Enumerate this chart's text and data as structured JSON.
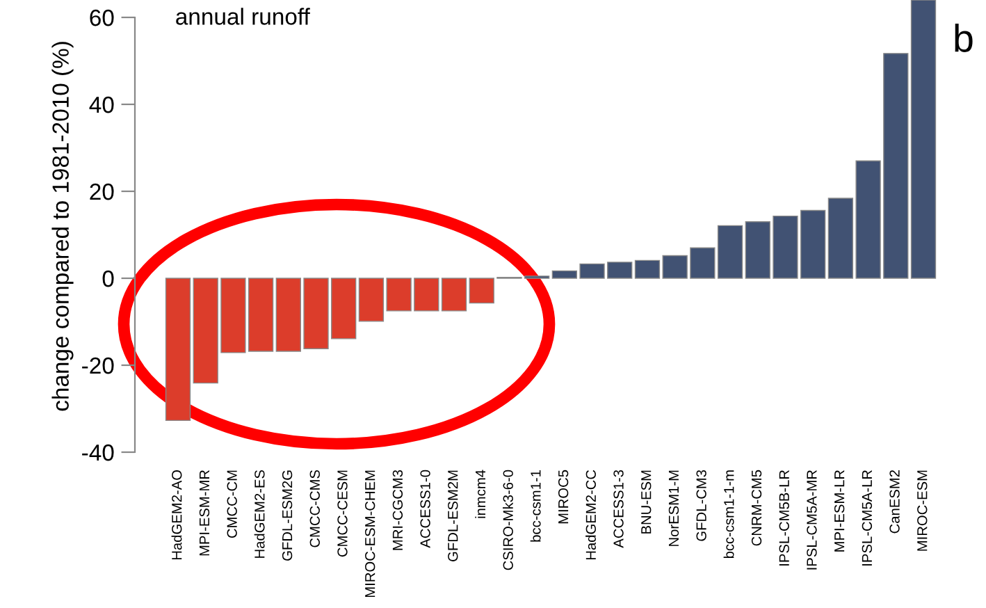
{
  "chart_data": {
    "type": "bar",
    "title": "annual runoff",
    "ylabel": "change compared to 1981-2010 (%)",
    "annotations": [
      "b"
    ],
    "categories": [
      "HadGEM2-AO",
      "MPI-ESM-MR",
      "CMCC-CM",
      "HadGEM2-ES",
      "GFDL-ESM2G",
      "CMCC-CMS",
      "CMCC-CESM",
      "MIROC-ESM-CHEM",
      "MRI-CGCM3",
      "ACCESS1-0",
      "GFDL-ESM2M",
      "inmcm4",
      "CSIRO-Mk3-6-0",
      "bcc-csm1-1",
      "MIROC5",
      "HadGEM2-CC",
      "ACCESS1-3",
      "BNU-ESM",
      "NorESM1-M",
      "GFDL-CM3",
      "bcc-csm1-1-m",
      "CNRM-CM5",
      "IPSL-CM5B-LR",
      "IPSL-CM5A-MR",
      "MPI-ESM-LR",
      "IPSL-CM5A-LR",
      "CanESM2",
      "MIROC-ESM"
    ],
    "values": [
      -32.7,
      -24.1,
      -17.1,
      -16.8,
      -16.8,
      -16.2,
      -13.9,
      -9.9,
      -7.5,
      -7.5,
      -7.5,
      -5.7,
      0.2,
      0.5,
      1.7,
      3.3,
      3.7,
      4.1,
      5.2,
      7.0,
      12.1,
      13.0,
      14.3,
      15.6,
      18.4,
      27.0,
      51.7,
      64
    ],
    "colors": [
      "#dc3d2b",
      "#dc3d2b",
      "#dc3d2b",
      "#dc3d2b",
      "#dc3d2b",
      "#dc3d2b",
      "#dc3d2b",
      "#dc3d2b",
      "#dc3d2b",
      "#dc3d2b",
      "#dc3d2b",
      "#dc3d2b",
      "#415273",
      "#415273",
      "#415273",
      "#415273",
      "#415273",
      "#415273",
      "#415273",
      "#415273",
      "#415273",
      "#415273",
      "#415273",
      "#415273",
      "#415273",
      "#415273",
      "#415273",
      "#415273"
    ],
    "ylim": [
      -40,
      64
    ],
    "yticks": [
      -40,
      -20,
      0,
      20,
      40,
      60
    ],
    "grid": false,
    "legend": false
  }
}
